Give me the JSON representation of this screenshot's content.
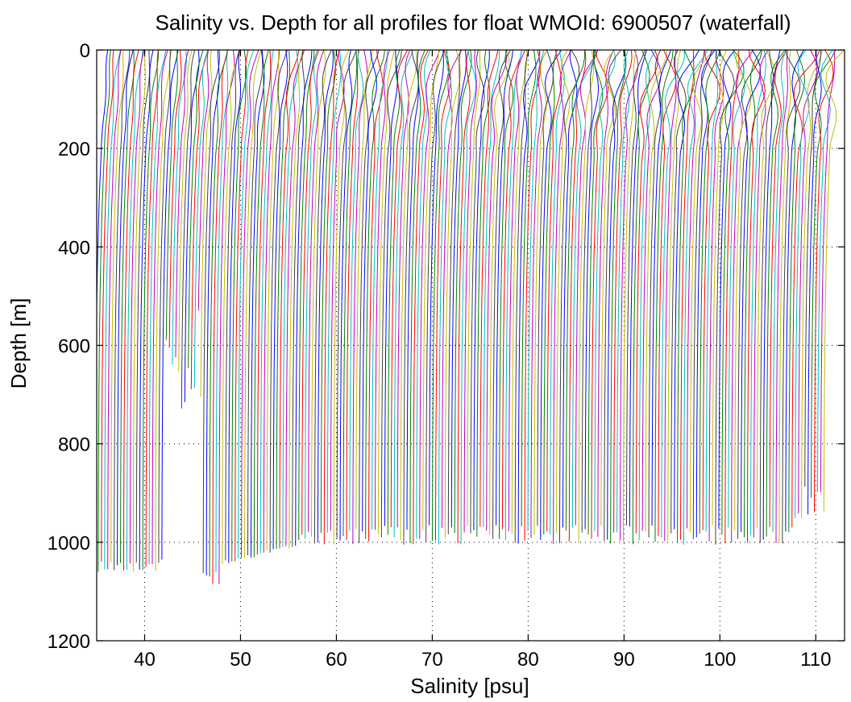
{
  "chart_data": {
    "type": "line",
    "title": "Salinity vs. Depth for all profiles for float WMOId: 6900507 (waterfall)",
    "xlabel": "Salinity [psu]",
    "ylabel": "Depth [m]",
    "xlim": [
      35,
      113
    ],
    "ylim": [
      0,
      1200
    ],
    "y_reversed": true,
    "grid": true,
    "x_ticks": [
      40,
      50,
      60,
      70,
      80,
      90,
      100,
      110
    ],
    "x_tick_labels": [
      "40",
      "50",
      "60",
      "70",
      "80",
      "90",
      "100",
      "110"
    ],
    "y_ticks": [
      0,
      200,
      400,
      600,
      800,
      1000,
      1200
    ],
    "y_tick_labels": [
      "0",
      "200",
      "400",
      "600",
      "800",
      "1000",
      "1200"
    ],
    "colors": [
      "#0000ff",
      "#008000",
      "#ff0000",
      "#00bfbf",
      "#bf00bf",
      "#bfbf00",
      "#404040"
    ],
    "waterfall": {
      "profile_count": 230,
      "first_offset": 36.0,
      "last_offset": 112.0,
      "surface_salinity": 36.5,
      "deep_salinity": 35.0
    }
  }
}
